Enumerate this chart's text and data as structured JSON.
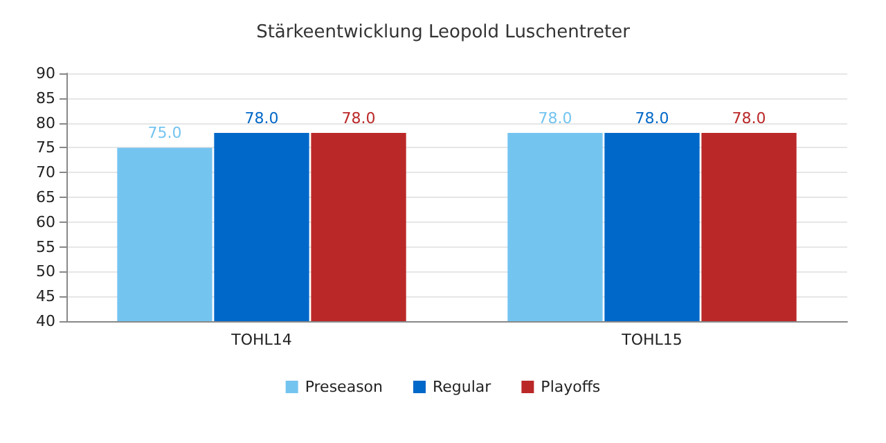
{
  "chart_data": {
    "type": "bar",
    "title": "Stärkeentwicklung Leopold Luschentreter",
    "categories": [
      "TOHL14",
      "TOHL15"
    ],
    "series": [
      {
        "name": "Preseason",
        "color": "#74c4f0",
        "values": [
          75,
          78
        ],
        "value_labels": [
          "75.0",
          "78.0"
        ]
      },
      {
        "name": "Regular",
        "color": "#0068c8",
        "values": [
          78,
          78
        ],
        "value_labels": [
          "78.0",
          "78.0"
        ]
      },
      {
        "name": "Playoffs",
        "color": "#bb2828",
        "values": [
          78,
          78
        ],
        "value_labels": [
          "78.0",
          "78.0"
        ]
      }
    ],
    "ylim": [
      40,
      90
    ],
    "yticks": [
      40,
      45,
      50,
      55,
      60,
      65,
      70,
      75,
      80,
      85,
      90
    ],
    "grid": "y",
    "legend": "bottom"
  }
}
